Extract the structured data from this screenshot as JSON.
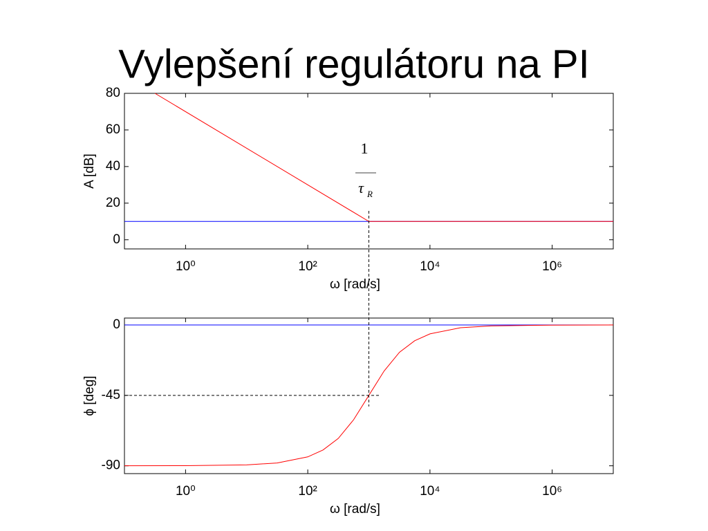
{
  "title": "Vylepšení regulátoru na PI",
  "chart_data": [
    {
      "type": "line",
      "xscale": "log",
      "grid": false,
      "ylabel": "A [dB]",
      "xlabel": "ω [rad/s]",
      "xlim": [
        0.1,
        10000000
      ],
      "ylim": [
        -5,
        80
      ],
      "xticks": [
        {
          "value": 1,
          "label": "10⁰"
        },
        {
          "value": 100,
          "label": "10²"
        },
        {
          "value": 10000,
          "label": "10⁴"
        },
        {
          "value": 1000000,
          "label": "10⁶"
        }
      ],
      "yticks": [
        0,
        20,
        40,
        60,
        80
      ],
      "annotation": {
        "numerator": "1",
        "denominator": "τ",
        "subscript": "R"
      },
      "series": [
        {
          "color": "#0000ff",
          "x": [
            0.1,
            10000000
          ],
          "values": [
            10,
            10
          ]
        },
        {
          "color": "#ff0000",
          "x": [
            0.316,
            1000,
            10000000
          ],
          "values": [
            80,
            10,
            10
          ]
        }
      ]
    },
    {
      "type": "line",
      "xscale": "log",
      "grid": false,
      "ylabel": "ϕ [deg]",
      "xlabel": "ω [rad/s]",
      "xlim": [
        0.1,
        10000000
      ],
      "ylim": [
        -95,
        4.4
      ],
      "xticks": [
        {
          "value": 1,
          "label": "10⁰"
        },
        {
          "value": 100,
          "label": "10²"
        },
        {
          "value": 10000,
          "label": "10⁴"
        },
        {
          "value": 1000000,
          "label": "10⁶"
        }
      ],
      "yticks": [
        -90,
        -45,
        0
      ],
      "guide_x": 1000,
      "guide_y": -45,
      "series": [
        {
          "color": "#0000ff",
          "x": [
            0.1,
            10000000
          ],
          "values": [
            0,
            0
          ]
        },
        {
          "color": "#ff0000",
          "x": [
            0.1,
            1,
            10,
            31.6,
            100,
            177.8,
            316.2,
            562.3,
            1000,
            1778,
            3162,
            5623,
            10000,
            31623,
            100000,
            1000000,
            10000000
          ],
          "values": [
            -90,
            -89.9,
            -89.4,
            -88.2,
            -84.3,
            -79.9,
            -72.5,
            -60.6,
            -45,
            -29.4,
            -17.5,
            -10.1,
            -5.7,
            -1.8,
            -0.6,
            -0.1,
            0
          ]
        }
      ]
    }
  ]
}
